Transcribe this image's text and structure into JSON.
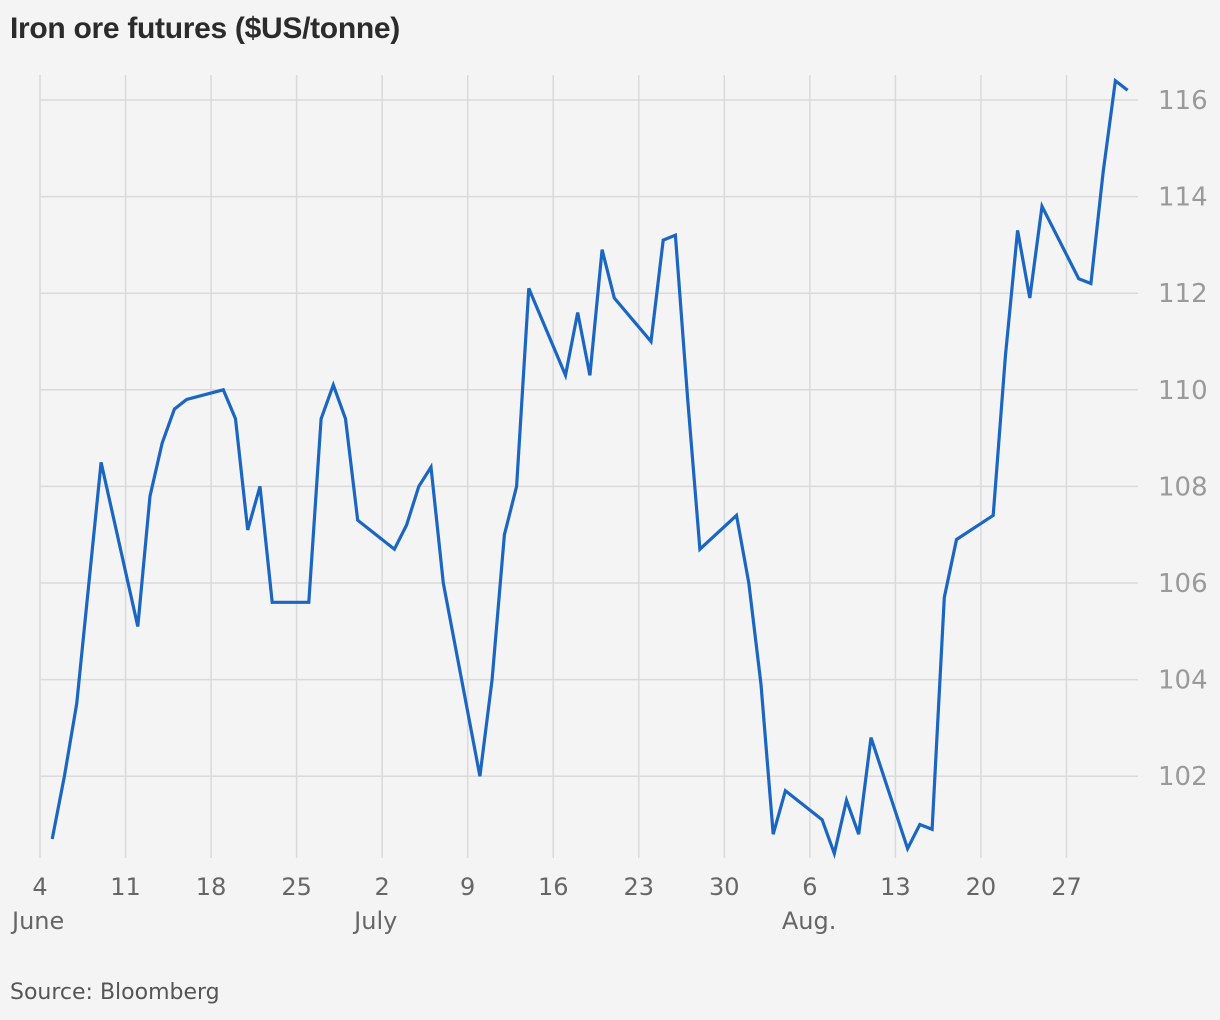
{
  "title": "Iron ore futures ($US/tonne)",
  "source": "Source: Bloomberg",
  "colors": {
    "background": "#f4f4f4",
    "line": "#1a66c2",
    "grid": "#dadada",
    "tick_text": "#9a9a9a",
    "axis_text": "#666666"
  },
  "chart_data": {
    "type": "line",
    "title": "Iron ore futures ($US/tonne)",
    "xlabel": "",
    "ylabel": "",
    "grid": true,
    "y_axis_side": "right",
    "ylim": [
      100.5,
      116.5
    ],
    "y_ticks": [
      102,
      104,
      106,
      108,
      110,
      112,
      114,
      116
    ],
    "x_ticks": [
      {
        "day": 0,
        "label": "4",
        "month": "June"
      },
      {
        "day": 7,
        "label": "11",
        "month": ""
      },
      {
        "day": 14,
        "label": "18",
        "month": ""
      },
      {
        "day": 21,
        "label": "25",
        "month": ""
      },
      {
        "day": 28,
        "label": "2",
        "month": "July"
      },
      {
        "day": 35,
        "label": "9",
        "month": ""
      },
      {
        "day": 42,
        "label": "16",
        "month": ""
      },
      {
        "day": 49,
        "label": "23",
        "month": ""
      },
      {
        "day": 56,
        "label": "30",
        "month": ""
      },
      {
        "day": 63,
        "label": "6",
        "month": "Aug."
      },
      {
        "day": 70,
        "label": "13",
        "month": ""
      },
      {
        "day": 77,
        "label": "20",
        "month": ""
      },
      {
        "day": 84,
        "label": "27",
        "month": ""
      }
    ],
    "series": [
      {
        "values": [
          [
            1,
            100.7
          ],
          [
            2,
            102.0
          ],
          [
            3,
            103.5
          ],
          [
            5,
            108.5
          ],
          [
            8,
            105.1
          ],
          [
            9,
            107.8
          ],
          [
            10,
            108.9
          ],
          [
            11,
            109.6
          ],
          [
            12,
            109.8
          ],
          [
            15,
            110.0
          ],
          [
            16,
            109.4
          ],
          [
            17,
            107.1
          ],
          [
            18,
            108.0
          ],
          [
            19,
            105.6
          ],
          [
            22,
            105.6
          ],
          [
            23,
            109.4
          ],
          [
            24,
            110.1
          ],
          [
            25,
            109.4
          ],
          [
            26,
            107.3
          ],
          [
            29,
            106.7
          ],
          [
            30,
            107.2
          ],
          [
            31,
            108.0
          ],
          [
            32,
            108.4
          ],
          [
            33,
            106.0
          ],
          [
            36,
            102.0
          ],
          [
            37,
            104.0
          ],
          [
            38,
            107.0
          ],
          [
            39,
            108.0
          ],
          [
            40,
            112.1
          ],
          [
            43,
            110.3
          ],
          [
            44,
            111.6
          ],
          [
            45,
            110.3
          ],
          [
            46,
            112.9
          ],
          [
            47,
            111.9
          ],
          [
            50,
            111.0
          ],
          [
            51,
            113.1
          ],
          [
            52,
            113.2
          ],
          [
            53,
            109.8
          ],
          [
            54,
            106.7
          ],
          [
            57,
            107.4
          ],
          [
            58,
            106.0
          ],
          [
            59,
            103.9
          ],
          [
            60,
            100.8
          ],
          [
            61,
            101.7
          ],
          [
            64,
            101.1
          ],
          [
            65,
            100.4
          ],
          [
            66,
            101.5
          ],
          [
            67,
            100.8
          ],
          [
            68,
            102.8
          ],
          [
            71,
            100.5
          ],
          [
            72,
            101.0
          ],
          [
            73,
            100.9
          ],
          [
            74,
            105.7
          ],
          [
            75,
            106.9
          ],
          [
            78,
            107.4
          ],
          [
            79,
            110.7
          ],
          [
            80,
            113.3
          ],
          [
            81,
            111.9
          ],
          [
            82,
            113.8
          ],
          [
            85,
            112.3
          ],
          [
            86,
            112.2
          ],
          [
            87,
            114.5
          ],
          [
            88,
            116.4
          ],
          [
            89,
            116.2
          ]
        ]
      }
    ]
  }
}
